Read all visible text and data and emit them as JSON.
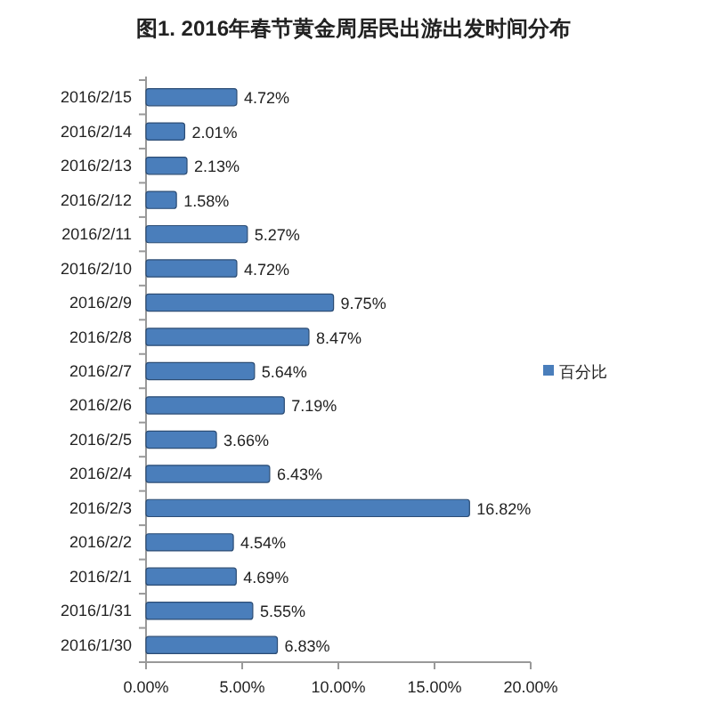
{
  "chart_data": {
    "type": "bar",
    "orientation": "horizontal",
    "title": "图1. 2016年春节黄金周居民出游出发时间分布",
    "categories": [
      "2016/2/15",
      "2016/2/14",
      "2016/2/13",
      "2016/2/12",
      "2016/2/11",
      "2016/2/10",
      "2016/2/9",
      "2016/2/8",
      "2016/2/7",
      "2016/2/6",
      "2016/2/5",
      "2016/2/4",
      "2016/2/3",
      "2016/2/2",
      "2016/2/1",
      "2016/1/31",
      "2016/1/30"
    ],
    "series": [
      {
        "name": "百分比",
        "color": "#4a7ebb",
        "values": [
          4.72,
          2.01,
          2.13,
          1.58,
          5.27,
          4.72,
          9.75,
          8.47,
          5.64,
          7.19,
          3.66,
          6.43,
          16.82,
          4.54,
          4.69,
          5.55,
          6.83
        ],
        "value_labels": [
          "4.72%",
          "2.01%",
          "2.13%",
          "1.58%",
          "5.27%",
          "4.72%",
          "9.75%",
          "8.47%",
          "5.64%",
          "7.19%",
          "3.66%",
          "6.43%",
          "16.82%",
          "4.54%",
          "4.69%",
          "5.55%",
          "6.83%"
        ]
      }
    ],
    "xlim": [
      0,
      20
    ],
    "xticks": [
      {
        "value": 0,
        "label": "0.00%"
      },
      {
        "value": 5,
        "label": "5.00%"
      },
      {
        "value": 10,
        "label": "10.00%"
      },
      {
        "value": 15,
        "label": "15.00%"
      },
      {
        "value": 20,
        "label": "20.00%"
      }
    ],
    "grid": false,
    "legend": "right"
  }
}
